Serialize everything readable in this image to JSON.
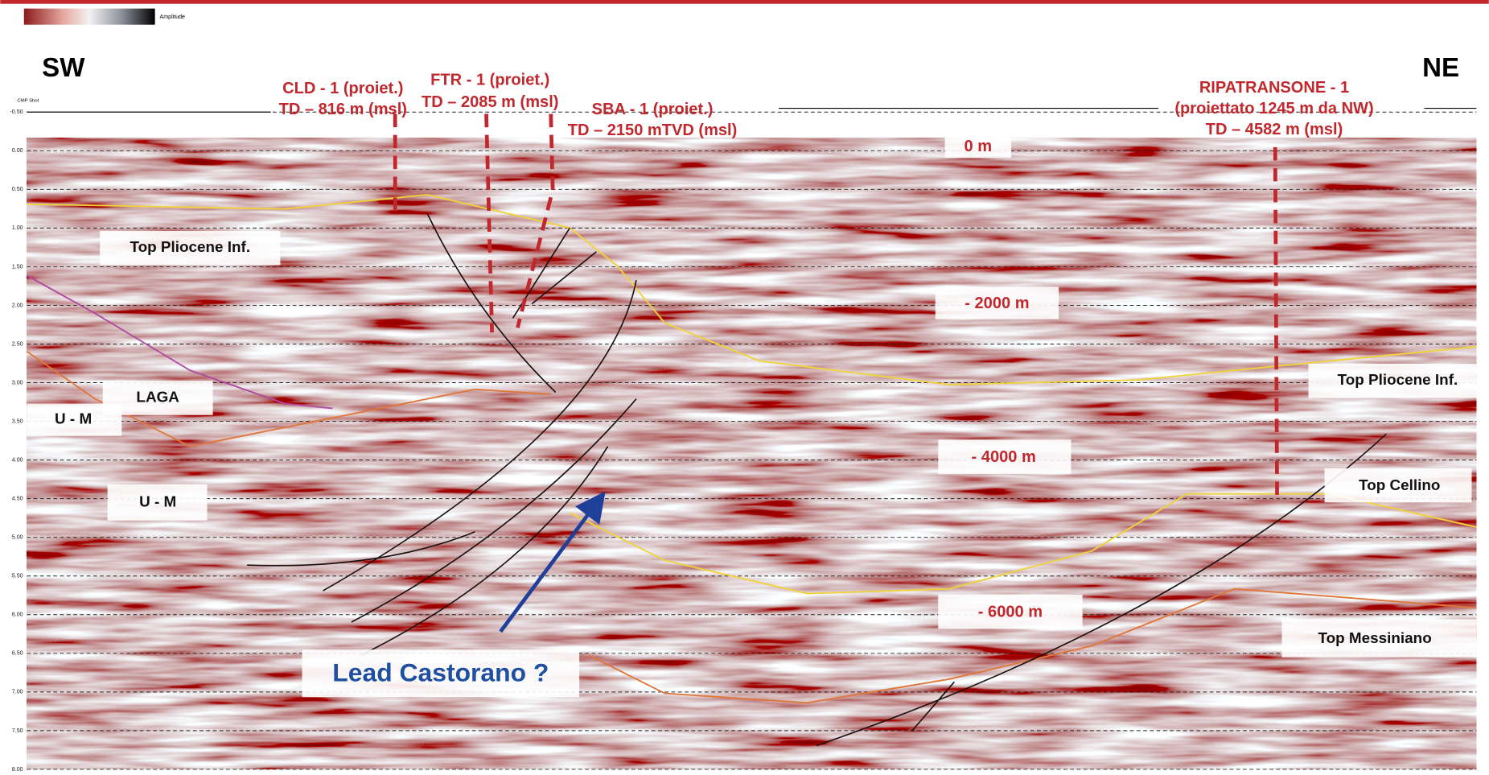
{
  "colorbar": {
    "title": "Amplitude"
  },
  "orientation": {
    "left": "SW",
    "right": "NE"
  },
  "axis": {
    "title": "CMP Shot",
    "time_ticks": [
      "-0.50",
      "0.00",
      "0.50",
      "1.00",
      "1.50",
      "2.00",
      "2.50",
      "3.00",
      "3.50",
      "4.00",
      "4.50",
      "5.00",
      "5.50",
      "6.00",
      "6.50",
      "7.00",
      "7.50",
      "8.00"
    ]
  },
  "wells": [
    {
      "name": "CLD - 1 (proiet.)",
      "td": "TD – 816 m (msl)"
    },
    {
      "name": "FTR - 1 (proiet.)",
      "td": "TD – 2085 m (msl)"
    },
    {
      "name": "SBA - 1 (proiet.)",
      "td": "TD – 2150 mTVD (msl)"
    },
    {
      "name": "RIPATRANSONE - 1",
      "note": "(proiettato 1245 m da NW)",
      "td": "TD – 4582 m (msl)"
    }
  ],
  "depth_labels": [
    "0 m",
    "- 2000 m",
    "- 4000 m",
    "- 6000 m"
  ],
  "horizon_labels": [
    "Top Pliocene Inf.",
    "LAGA",
    "U - M",
    "U - M",
    "Top Pliocene Inf.",
    "Top Cellino",
    "Top Messiniano"
  ],
  "lead": "Lead Castorano ?"
}
